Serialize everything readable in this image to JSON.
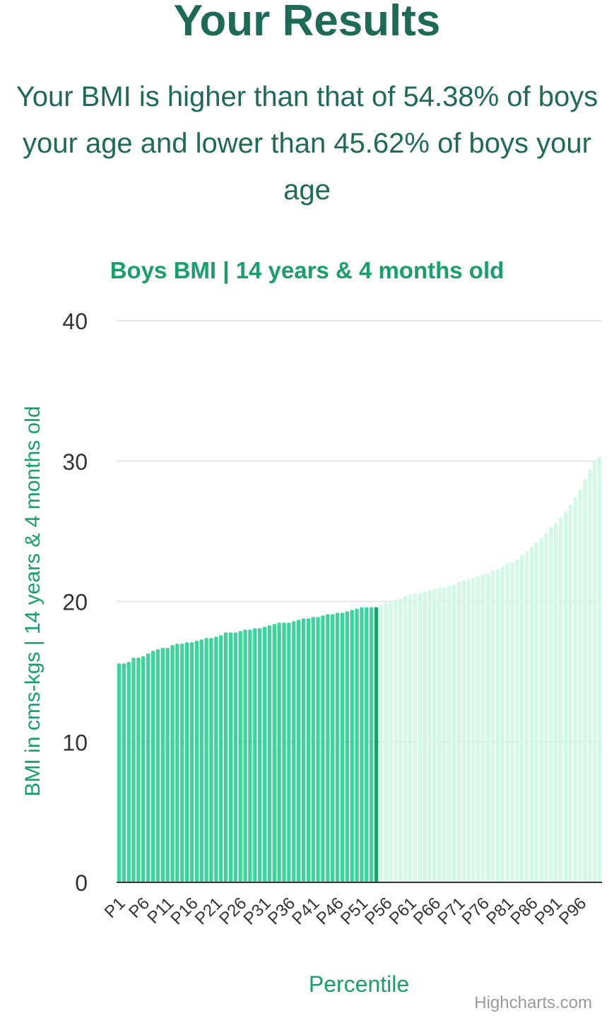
{
  "page": {
    "title": "Your Results",
    "summary": "Your BMI is higher than that of 54.38% of boys your age and lower than 45.62% of boys your age",
    "credit": "Highcharts.com"
  },
  "colors": {
    "title": "#1d6b57",
    "chart_title": "#18a06a",
    "bar_below": "#3dd39e",
    "bar_current": "#17a069",
    "bar_above": "#d2f8e6",
    "grid": "#e6e6e6",
    "axis": "#333333"
  },
  "chart_data": {
    "type": "bar",
    "title": "Boys BMI | 14 years & 4 months old",
    "xlabel": "Percentile",
    "ylabel": "BMI in cms-kgs | 14 years & 4 months old",
    "ylim": [
      0,
      40
    ],
    "yticks": [
      0,
      10,
      20,
      30,
      40
    ],
    "grid": true,
    "highlight_index": 53,
    "categories": [
      "P1",
      "P2",
      "P3",
      "P4",
      "P5",
      "P6",
      "P7",
      "P8",
      "P9",
      "P10",
      "P11",
      "P12",
      "P13",
      "P14",
      "P15",
      "P16",
      "P17",
      "P18",
      "P19",
      "P20",
      "P21",
      "P22",
      "P23",
      "P24",
      "P25",
      "P26",
      "P27",
      "P28",
      "P29",
      "P30",
      "P31",
      "P32",
      "P33",
      "P34",
      "P35",
      "P36",
      "P37",
      "P38",
      "P39",
      "P40",
      "P41",
      "P42",
      "P43",
      "P44",
      "P45",
      "P46",
      "P47",
      "P48",
      "P49",
      "P50",
      "P51",
      "P52",
      "P53",
      "P54",
      "P55",
      "P56",
      "P57",
      "P58",
      "P59",
      "P60",
      "P61",
      "P62",
      "P63",
      "P64",
      "P65",
      "P66",
      "P67",
      "P68",
      "P69",
      "P70",
      "P71",
      "P72",
      "P73",
      "P74",
      "P75",
      "P76",
      "P77",
      "P78",
      "P79",
      "P80",
      "P81",
      "P82",
      "P83",
      "P84",
      "P85",
      "P86",
      "P87",
      "P88",
      "P89",
      "P90",
      "P91",
      "P92",
      "P93",
      "P94",
      "P95",
      "P96",
      "P97",
      "P98",
      "P99",
      "P100"
    ],
    "values": [
      15.6,
      15.6,
      15.7,
      16.0,
      16.0,
      16.1,
      16.3,
      16.5,
      16.6,
      16.7,
      16.7,
      16.9,
      17.0,
      17.0,
      17.1,
      17.1,
      17.2,
      17.3,
      17.4,
      17.4,
      17.5,
      17.6,
      17.8,
      17.8,
      17.8,
      17.9,
      18.0,
      18.0,
      18.1,
      18.1,
      18.2,
      18.3,
      18.4,
      18.5,
      18.5,
      18.5,
      18.6,
      18.7,
      18.8,
      18.8,
      18.9,
      18.9,
      19.0,
      19.1,
      19.1,
      19.2,
      19.2,
      19.3,
      19.4,
      19.5,
      19.6,
      19.6,
      19.6,
      19.6,
      19.8,
      19.9,
      20.0,
      20.1,
      20.2,
      20.4,
      20.5,
      20.6,
      20.6,
      20.7,
      20.8,
      20.9,
      21.0,
      21.0,
      21.1,
      21.2,
      21.4,
      21.5,
      21.6,
      21.7,
      21.8,
      21.9,
      22.0,
      22.2,
      22.3,
      22.5,
      22.7,
      22.8,
      23.0,
      23.3,
      23.6,
      23.9,
      24.2,
      24.5,
      24.9,
      25.3,
      25.6,
      26.0,
      26.4,
      26.9,
      27.4,
      28.0,
      28.7,
      29.4,
      30.0,
      30.3
    ],
    "x_tick_labels": [
      "P1",
      "P6",
      "P11",
      "P16",
      "P21",
      "P26",
      "P31",
      "P36",
      "P41",
      "P46",
      "P51",
      "P56",
      "P61",
      "P66",
      "P71",
      "P76",
      "P81",
      "P86",
      "P91",
      "P96"
    ]
  }
}
